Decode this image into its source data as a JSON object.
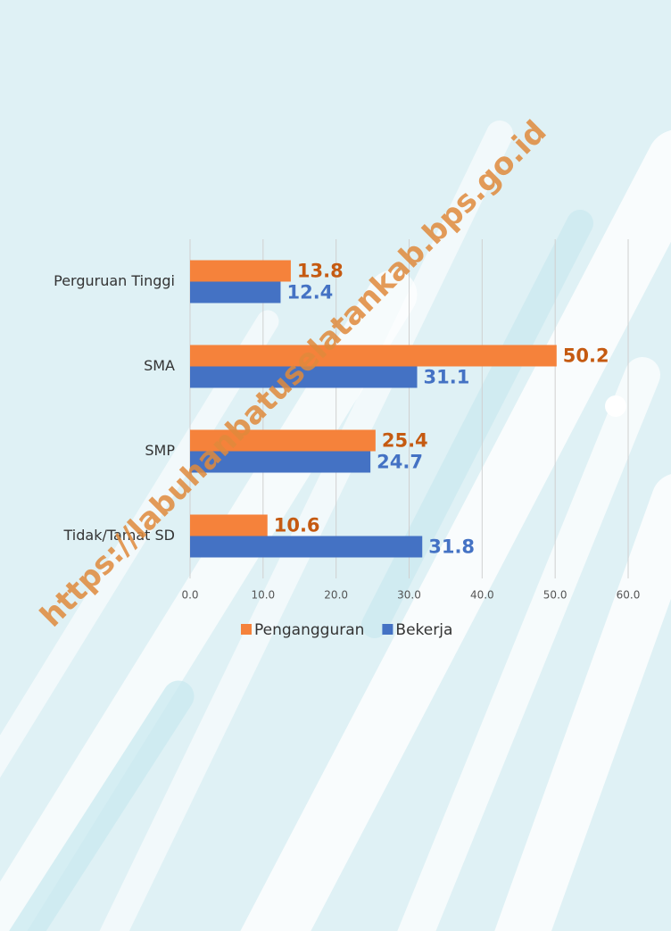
{
  "watermark": "https://labuhanbatuselatankab.bps.go.id",
  "chart_data": {
    "type": "hbar",
    "categories": [
      "Perguruan Tinggi",
      "SMA",
      "SMP",
      "Tidak/Tamat SD"
    ],
    "series": [
      {
        "name": "Pengangguran",
        "color": "#f5823b",
        "label_color": "#c55a11",
        "values": [
          13.8,
          50.2,
          25.4,
          10.6
        ]
      },
      {
        "name": "Bekerja",
        "color": "#4472c4",
        "label_color": "#4472c4",
        "values": [
          12.4,
          31.1,
          24.7,
          31.8
        ]
      }
    ],
    "xlim": [
      0,
      60
    ],
    "xticks": [
      {
        "value": 0,
        "label": "0.0"
      },
      {
        "value": 10,
        "label": "10.0"
      },
      {
        "value": 20,
        "label": "20.0"
      },
      {
        "value": 30,
        "label": "30.0"
      },
      {
        "value": 40,
        "label": "40.0"
      },
      {
        "value": 50,
        "label": "50.0"
      },
      {
        "value": 60,
        "label": "60.0"
      }
    ],
    "grid": true,
    "legend": "bottom"
  }
}
